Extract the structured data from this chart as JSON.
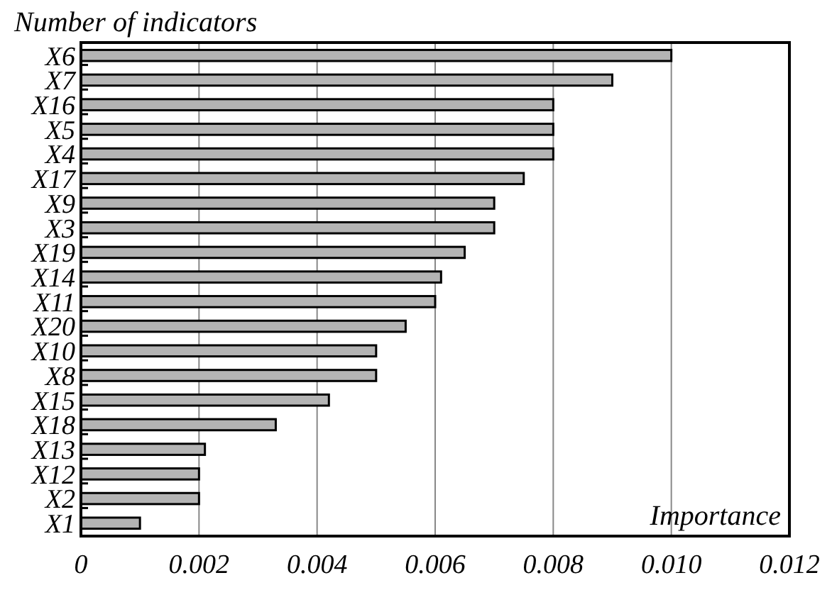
{
  "chart_data": {
    "type": "bar",
    "orientation": "horizontal",
    "xlabel": "Importance",
    "ylabel": "Number of indicators",
    "categories": [
      "X6",
      "X7",
      "X16",
      "X5",
      "X4",
      "X17",
      "X9",
      "X3",
      "X19",
      "X14",
      "X11",
      "X20",
      "X10",
      "X8",
      "X15",
      "X18",
      "X13",
      "X12",
      "X2",
      "X1"
    ],
    "values": [
      0.01,
      0.009,
      0.008,
      0.008,
      0.008,
      0.0075,
      0.007,
      0.007,
      0.0065,
      0.0061,
      0.006,
      0.0055,
      0.005,
      0.005,
      0.0042,
      0.0033,
      0.0021,
      0.002,
      0.002,
      0.001
    ],
    "color": "#b4b4b4",
    "xlim": [
      0,
      0.012
    ],
    "xticks": [
      0,
      0.002,
      0.004,
      0.006,
      0.008,
      {
        "value": 0.01,
        "label": "0.010"
      },
      0.012
    ],
    "grid": "x"
  }
}
